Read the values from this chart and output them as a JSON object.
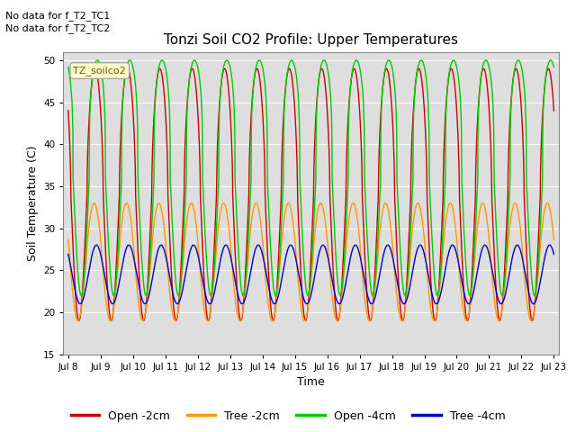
{
  "title": "Tonzi Soil CO2 Profile: Upper Temperatures",
  "ylabel": "Soil Temperature (C)",
  "xlabel": "Time",
  "ylim": [
    15,
    51
  ],
  "yticks": [
    15,
    20,
    25,
    30,
    35,
    40,
    45,
    50
  ],
  "start_day": 8,
  "end_day": 23,
  "colors": {
    "open_2cm": "#cc0000",
    "tree_2cm": "#ff9900",
    "open_4cm": "#00cc00",
    "tree_4cm": "#0000cc"
  },
  "legend_labels": [
    "Open -2cm",
    "Tree -2cm",
    "Open -4cm",
    "Tree -4cm"
  ],
  "no_data_text": [
    "No data for f_T2_TC1",
    "No data for f_T2_TC2"
  ],
  "tz_label": "TZ_soilco2",
  "background_color": "#ffffff",
  "plot_bg_color": "#dedede",
  "grid_color": "#ffffff",
  "linewidth": 1.0,
  "figsize": [
    6.4,
    4.8
  ],
  "dpi": 100
}
